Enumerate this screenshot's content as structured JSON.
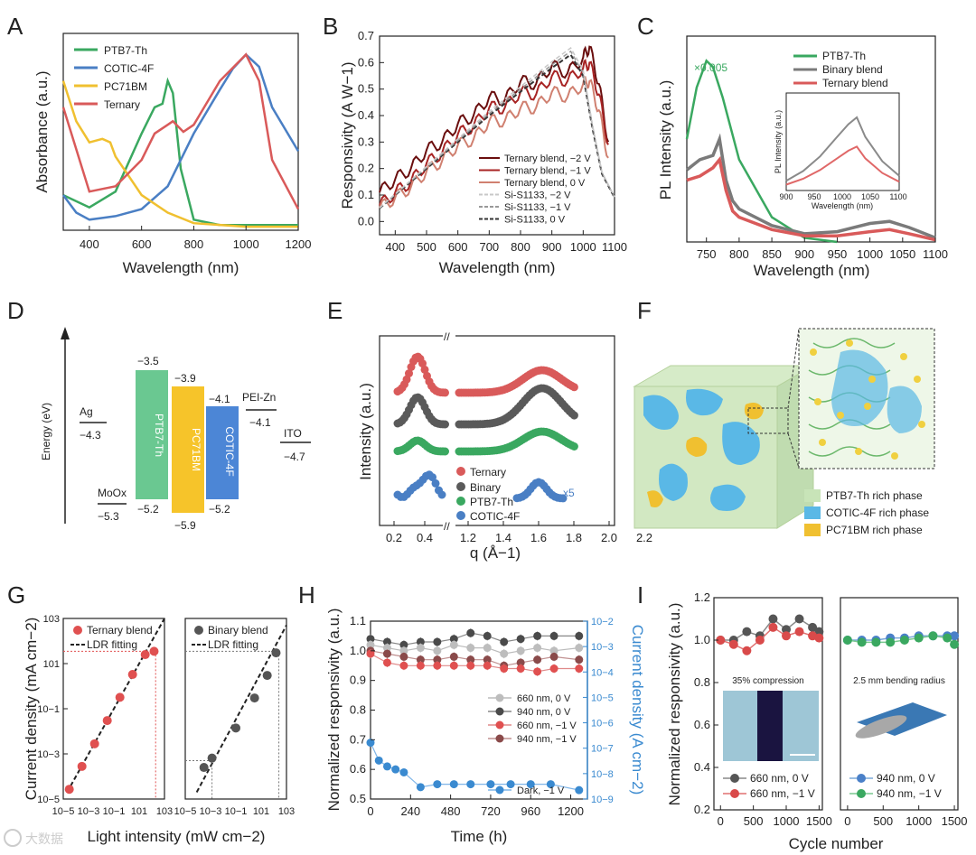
{
  "colors": {
    "ptb7": "#3aa860",
    "cotic": "#4a7fc4",
    "pc71": "#f0c030",
    "ternary": "#d95a5a",
    "binary": "#7a7a7a",
    "dark_red": "#6a0e0e",
    "mid_red": "#a82424",
    "light_red": "#d08070",
    "axis_blue": "#3a8ad0"
  },
  "panels": {
    "A": "A",
    "B": "B",
    "C": "C",
    "D": "D",
    "E": "E",
    "F": "F",
    "G": "G",
    "H": "H",
    "I": "I"
  },
  "chart_data": [
    {
      "id": "A",
      "type": "line",
      "xlabel": "Wavelength (nm)",
      "ylabel": "Absorbance (a.u.)",
      "xlim": [
        300,
        1200
      ],
      "xticks": [
        "400",
        "600",
        "800",
        "1000",
        "1200"
      ],
      "legend": [
        "PTB7-Th",
        "COTIC-4F",
        "PC71BM",
        "Ternary"
      ],
      "series": [
        {
          "name": "PTB7-Th",
          "x": [
            300,
            400,
            500,
            600,
            650,
            680,
            700,
            720,
            750,
            800,
            900,
            1200
          ],
          "y": [
            0.2,
            0.13,
            0.22,
            0.55,
            0.7,
            0.72,
            0.85,
            0.78,
            0.35,
            0.06,
            0.03,
            0.03
          ]
        },
        {
          "name": "COTIC-4F",
          "x": [
            300,
            350,
            400,
            450,
            500,
            600,
            700,
            800,
            900,
            950,
            1000,
            1050,
            1100,
            1200
          ],
          "y": [
            0.2,
            0.1,
            0.06,
            0.07,
            0.08,
            0.12,
            0.25,
            0.55,
            0.8,
            0.92,
            1.0,
            0.93,
            0.7,
            0.45
          ]
        },
        {
          "name": "PC71BM",
          "x": [
            300,
            350,
            400,
            450,
            480,
            500,
            600,
            700,
            800,
            1000,
            1200
          ],
          "y": [
            0.85,
            0.62,
            0.5,
            0.52,
            0.5,
            0.42,
            0.2,
            0.1,
            0.04,
            0.02,
            0.02
          ]
        },
        {
          "name": "Ternary",
          "x": [
            300,
            400,
            500,
            600,
            650,
            700,
            720,
            760,
            800,
            900,
            1000,
            1050,
            1100,
            1200
          ],
          "y": [
            0.7,
            0.22,
            0.25,
            0.4,
            0.55,
            0.6,
            0.62,
            0.56,
            0.6,
            0.85,
            1.0,
            0.85,
            0.4,
            0.12
          ]
        }
      ]
    },
    {
      "id": "B",
      "type": "line",
      "xlabel": "Wavelength (nm)",
      "ylabel": "Responsivity (A W−1)",
      "xlim": [
        350,
        1100
      ],
      "ylim": [
        -0.05,
        0.7
      ],
      "xticks": [
        "400",
        "500",
        "600",
        "700",
        "800",
        "900",
        "1000",
        "1100"
      ],
      "yticks": [
        "0.0",
        "0.1",
        "0.2",
        "0.3",
        "0.4",
        "0.5",
        "0.6",
        "0.7"
      ],
      "legend": [
        "Ternary blend, −2 V",
        "Ternary blend, −1 V",
        "Ternary blend,  0 V",
        "Si-S1133, −2 V",
        "Si-S1133, −1 V",
        "Si-S1133,  0 V"
      ],
      "series": [
        {
          "name": "Ternary blend, −2 V",
          "x": [
            350,
            400,
            450,
            500,
            550,
            600,
            650,
            700,
            750,
            800,
            850,
            900,
            950,
            1000,
            1020,
            1050,
            1080
          ],
          "y": [
            0.11,
            0.16,
            0.2,
            0.27,
            0.3,
            0.37,
            0.4,
            0.47,
            0.46,
            0.53,
            0.52,
            0.59,
            0.56,
            0.62,
            0.66,
            0.52,
            0.3
          ]
        },
        {
          "name": "Ternary blend, −1 V",
          "x": [
            350,
            400,
            450,
            500,
            550,
            600,
            650,
            700,
            750,
            800,
            850,
            900,
            950,
            1000,
            1020,
            1050,
            1080
          ],
          "y": [
            0.06,
            0.11,
            0.15,
            0.22,
            0.26,
            0.33,
            0.36,
            0.43,
            0.43,
            0.49,
            0.48,
            0.55,
            0.53,
            0.58,
            0.6,
            0.48,
            0.29
          ]
        },
        {
          "name": "Ternary blend,  0 V",
          "x": [
            350,
            400,
            450,
            500,
            550,
            600,
            650,
            700,
            750,
            800,
            850,
            900,
            950,
            1000,
            1020,
            1050,
            1080
          ],
          "y": [
            0.05,
            0.09,
            0.13,
            0.19,
            0.23,
            0.29,
            0.31,
            0.38,
            0.38,
            0.43,
            0.43,
            0.49,
            0.47,
            0.52,
            0.53,
            0.42,
            0.24
          ]
        },
        {
          "name": "Si-S1133,  0 V",
          "x": [
            350,
            400,
            500,
            600,
            700,
            800,
            900,
            960,
            1000,
            1030,
            1060,
            1100
          ],
          "y": [
            0.05,
            0.1,
            0.2,
            0.3,
            0.4,
            0.49,
            0.58,
            0.63,
            0.55,
            0.35,
            0.18,
            0.09
          ]
        }
      ]
    },
    {
      "id": "C",
      "type": "line",
      "xlabel": "Wavelength (nm)",
      "ylabel": "PL Intensity (a.u.)",
      "xlim": [
        720,
        1100
      ],
      "xticks": [
        "750",
        "800",
        "850",
        "900",
        "950",
        "1000",
        "1050",
        "1100"
      ],
      "legend": [
        "PTB7-Th",
        "Binary blend",
        "Ternary blend"
      ],
      "annotation": "×0.005",
      "inset": {
        "xlabel": "Wavelength (nm)",
        "ylabel": "PL Intensity (a.u.)",
        "xticks": [
          "900",
          "950",
          "1000",
          "1050",
          "1100"
        ]
      },
      "series": [
        {
          "name": "PTB7-Th",
          "x": [
            720,
            735,
            750,
            760,
            775,
            800,
            850,
            900,
            950
          ],
          "y": [
            0.5,
            0.75,
            0.88,
            0.85,
            0.7,
            0.4,
            0.12,
            0.02,
            0.0
          ]
        },
        {
          "name": "Binary blend",
          "x": [
            720,
            740,
            760,
            770,
            780,
            790,
            800,
            850,
            900,
            950,
            1000,
            1030,
            1060,
            1100
          ],
          "y": [
            0.35,
            0.4,
            0.42,
            0.5,
            0.3,
            0.2,
            0.16,
            0.08,
            0.04,
            0.05,
            0.09,
            0.1,
            0.07,
            0.02
          ]
        },
        {
          "name": "Ternary blend",
          "x": [
            720,
            740,
            760,
            770,
            780,
            790,
            800,
            850,
            900,
            950,
            1000,
            1030,
            1060,
            1100
          ],
          "y": [
            0.3,
            0.32,
            0.36,
            0.4,
            0.25,
            0.15,
            0.12,
            0.06,
            0.03,
            0.03,
            0.05,
            0.06,
            0.04,
            0.01
          ]
        }
      ]
    },
    {
      "id": "D",
      "type": "diagram",
      "ylabel": "Energy (eV)",
      "levels": [
        {
          "name": "Ag",
          "value": "−4.3"
        },
        {
          "name": "MoOx",
          "value": "−5.3"
        },
        {
          "name": "PTB7-Th",
          "top": "−3.5",
          "bottom": "−5.2"
        },
        {
          "name": "PC71BM",
          "top": "−3.9",
          "bottom": "−5.9"
        },
        {
          "name": "COTIC-4F",
          "top": "−4.1",
          "bottom": "−5.2"
        },
        {
          "name": "PEI-Zn",
          "value": "−4.1"
        },
        {
          "name": "ITO",
          "value": "−4.7"
        }
      ]
    },
    {
      "id": "E",
      "type": "scatter",
      "xlabel": "q (Å−1)",
      "ylabel": "Intensity (a.u.)",
      "xticks": [
        "0.2",
        "0.4",
        "1.2",
        "1.4",
        "1.6",
        "1.8",
        "2.0",
        "2.2"
      ],
      "legend": [
        "Ternary",
        "Binary",
        "PTB7-Th",
        "COTIC-4F"
      ],
      "annotation": "x5"
    },
    {
      "id": "F",
      "type": "diagram",
      "legend": [
        "PTB7-Th rich phase",
        "COTIC-4F rich phase",
        "PC71BM rich phase"
      ]
    },
    {
      "id": "G",
      "type": "scatter",
      "xlabel": "Light intensity (mW cm−2)",
      "ylabel": "Current density (mA cm−2)",
      "xticks": [
        "10−5",
        "10−3",
        "10−1",
        "101",
        "103"
      ],
      "yticks": [
        "10−5",
        "10−3",
        "10−1",
        "101",
        "103"
      ],
      "subplots": [
        {
          "legend": [
            "Ternary blend",
            "LDR fitting"
          ],
          "x": [
            3e-05,
            0.0003,
            0.003,
            0.03,
            0.3,
            3,
            30,
            150
          ],
          "y": [
            2.7e-05,
            0.00028,
            0.0028,
            0.03,
            0.32,
            3.3,
            25,
            35
          ]
        },
        {
          "legend": [
            "Binary blend",
            "LDR fitting"
          ],
          "x": [
            0.0003,
            0.0013,
            0.1,
            3,
            30,
            150
          ],
          "y": [
            0.00025,
            0.00065,
            0.014,
            0.3,
            3,
            30
          ]
        }
      ]
    },
    {
      "id": "H",
      "type": "scatter",
      "xlabel": "Time (h)",
      "ylabel": "Normalized responsivity (a.u.)",
      "y2label": "Current density (A cm−2)",
      "xlim": [
        0,
        1300
      ],
      "ylim": [
        0.5,
        1.1
      ],
      "xticks": [
        "0",
        "240",
        "480",
        "720",
        "960",
        "1200"
      ],
      "yticks": [
        "0.5",
        "0.6",
        "0.7",
        "0.8",
        "0.9",
        "1.0",
        "1.1"
      ],
      "y2ticks": [
        "10−9",
        "10−8",
        "10−7",
        "10−6",
        "10−5",
        "10−4",
        "10−3",
        "10−2"
      ],
      "legend": [
        "660 nm, 0 V",
        "940 nm, 0 V",
        "660 nm, −1 V",
        "940 nm, −1 V",
        "Dark, −1 V"
      ],
      "series": [
        {
          "name": "940 nm, 0 V",
          "x": [
            0,
            100,
            200,
            300,
            400,
            500,
            600,
            700,
            800,
            900,
            1000,
            1100,
            1250
          ],
          "y": [
            1.04,
            1.03,
            1.02,
            1.03,
            1.03,
            1.04,
            1.06,
            1.05,
            1.03,
            1.04,
            1.05,
            1.05,
            1.05
          ]
        },
        {
          "name": "660 nm, 0 V",
          "x": [
            0,
            100,
            200,
            300,
            400,
            500,
            600,
            700,
            800,
            900,
            1000,
            1100,
            1250
          ],
          "y": [
            1.02,
            1.01,
            1.0,
            1.01,
            1.0,
            1.02,
            1.01,
            1.01,
            0.99,
            1.0,
            1.01,
            1.0,
            1.01
          ]
        },
        {
          "name": "940 nm, −1 V",
          "x": [
            0,
            100,
            200,
            300,
            400,
            500,
            600,
            700,
            800,
            900,
            1000,
            1100,
            1250
          ],
          "y": [
            1.0,
            0.99,
            0.98,
            0.97,
            0.97,
            0.98,
            0.97,
            0.97,
            0.95,
            0.96,
            0.97,
            0.98,
            0.97
          ]
        },
        {
          "name": "660 nm, −1 V",
          "x": [
            0,
            100,
            200,
            300,
            400,
            500,
            600,
            700,
            800,
            900,
            1000,
            1100,
            1250
          ],
          "y": [
            0.99,
            0.96,
            0.95,
            0.95,
            0.95,
            0.95,
            0.95,
            0.95,
            0.94,
            0.94,
            0.93,
            0.94,
            0.94
          ]
        },
        {
          "name": "Dark, −1 V",
          "x": [
            0,
            50,
            100,
            150,
            200,
            300,
            400,
            500,
            600,
            720,
            840,
            960,
            1080,
            1250
          ],
          "y": [
            0.69,
            0.63,
            0.61,
            0.6,
            0.59,
            0.54,
            0.55,
            0.55,
            0.55,
            0.55,
            0.55,
            0.55,
            0.55,
            0.53
          ]
        }
      ]
    },
    {
      "id": "I",
      "type": "line",
      "xlabel": "Cycle number",
      "ylabel": "Normalized responsivity (a.u.)",
      "ylim": [
        0.2,
        1.2
      ],
      "xticks": [
        "0",
        "500",
        "1000",
        "1500"
      ],
      "yticks": [
        "0.2",
        "0.4",
        "0.6",
        "0.8",
        "1.0",
        "1.2"
      ],
      "subplots": [
        {
          "caption": "35% compression",
          "legend": [
            "660 nm, 0 V",
            "660 nm, −1 V"
          ],
          "series": [
            {
              "name": "660 nm, 0 V",
              "x": [
                0,
                200,
                400,
                600,
                800,
                1000,
                1200,
                1400,
                1500
              ],
              "y": [
                1.0,
                1.0,
                1.04,
                1.02,
                1.1,
                1.05,
                1.1,
                1.06,
                1.04
              ]
            },
            {
              "name": "660 nm, −1 V",
              "x": [
                0,
                200,
                400,
                600,
                800,
                1000,
                1200,
                1400,
                1500
              ],
              "y": [
                1.0,
                0.98,
                0.95,
                1.0,
                1.06,
                1.02,
                1.04,
                1.02,
                1.01
              ]
            }
          ]
        },
        {
          "caption": "2.5 mm bending radius",
          "legend": [
            "940 nm, 0 V",
            "940 nm, −1 V"
          ],
          "series": [
            {
              "name": "940 nm, 0 V",
              "x": [
                0,
                200,
                400,
                600,
                800,
                1000,
                1200,
                1400,
                1500
              ],
              "y": [
                1.0,
                1.0,
                1.0,
                1.01,
                1.01,
                1.02,
                1.02,
                1.02,
                1.02
              ]
            },
            {
              "name": "940 nm, −1 V",
              "x": [
                0,
                200,
                400,
                600,
                800,
                1000,
                1200,
                1400,
                1500
              ],
              "y": [
                1.0,
                0.99,
                0.99,
                0.99,
                1.0,
                1.01,
                1.02,
                1.01,
                0.98
              ]
            }
          ]
        }
      ]
    }
  ],
  "watermark": "大数据"
}
